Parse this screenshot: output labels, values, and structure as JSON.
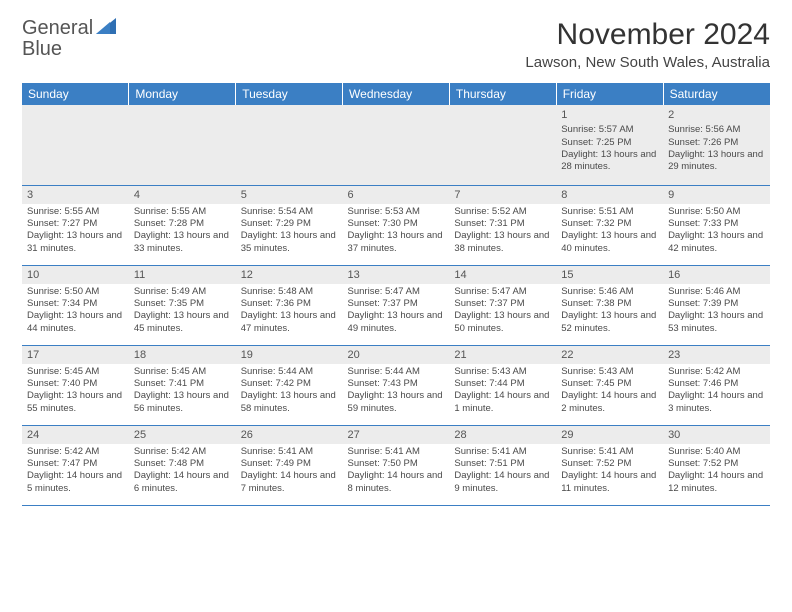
{
  "logo": {
    "text1": "General",
    "text2": "Blue"
  },
  "title": "November 2024",
  "location": "Lawson, New South Wales, Australia",
  "colors": {
    "header_bg": "#3b7fc4",
    "grey_bg": "#ececec",
    "border": "#3b7fc4",
    "text": "#4a4a4a"
  },
  "days_of_week": [
    "Sunday",
    "Monday",
    "Tuesday",
    "Wednesday",
    "Thursday",
    "Friday",
    "Saturday"
  ],
  "weeks": [
    [
      null,
      null,
      null,
      null,
      null,
      {
        "n": "1",
        "sr": "5:57 AM",
        "ss": "7:25 PM",
        "dl": "13 hours and 28 minutes."
      },
      {
        "n": "2",
        "sr": "5:56 AM",
        "ss": "7:26 PM",
        "dl": "13 hours and 29 minutes."
      }
    ],
    [
      {
        "n": "3",
        "sr": "5:55 AM",
        "ss": "7:27 PM",
        "dl": "13 hours and 31 minutes."
      },
      {
        "n": "4",
        "sr": "5:55 AM",
        "ss": "7:28 PM",
        "dl": "13 hours and 33 minutes."
      },
      {
        "n": "5",
        "sr": "5:54 AM",
        "ss": "7:29 PM",
        "dl": "13 hours and 35 minutes."
      },
      {
        "n": "6",
        "sr": "5:53 AM",
        "ss": "7:30 PM",
        "dl": "13 hours and 37 minutes."
      },
      {
        "n": "7",
        "sr": "5:52 AM",
        "ss": "7:31 PM",
        "dl": "13 hours and 38 minutes."
      },
      {
        "n": "8",
        "sr": "5:51 AM",
        "ss": "7:32 PM",
        "dl": "13 hours and 40 minutes."
      },
      {
        "n": "9",
        "sr": "5:50 AM",
        "ss": "7:33 PM",
        "dl": "13 hours and 42 minutes."
      }
    ],
    [
      {
        "n": "10",
        "sr": "5:50 AM",
        "ss": "7:34 PM",
        "dl": "13 hours and 44 minutes."
      },
      {
        "n": "11",
        "sr": "5:49 AM",
        "ss": "7:35 PM",
        "dl": "13 hours and 45 minutes."
      },
      {
        "n": "12",
        "sr": "5:48 AM",
        "ss": "7:36 PM",
        "dl": "13 hours and 47 minutes."
      },
      {
        "n": "13",
        "sr": "5:47 AM",
        "ss": "7:37 PM",
        "dl": "13 hours and 49 minutes."
      },
      {
        "n": "14",
        "sr": "5:47 AM",
        "ss": "7:37 PM",
        "dl": "13 hours and 50 minutes."
      },
      {
        "n": "15",
        "sr": "5:46 AM",
        "ss": "7:38 PM",
        "dl": "13 hours and 52 minutes."
      },
      {
        "n": "16",
        "sr": "5:46 AM",
        "ss": "7:39 PM",
        "dl": "13 hours and 53 minutes."
      }
    ],
    [
      {
        "n": "17",
        "sr": "5:45 AM",
        "ss": "7:40 PM",
        "dl": "13 hours and 55 minutes."
      },
      {
        "n": "18",
        "sr": "5:45 AM",
        "ss": "7:41 PM",
        "dl": "13 hours and 56 minutes."
      },
      {
        "n": "19",
        "sr": "5:44 AM",
        "ss": "7:42 PM",
        "dl": "13 hours and 58 minutes."
      },
      {
        "n": "20",
        "sr": "5:44 AM",
        "ss": "7:43 PM",
        "dl": "13 hours and 59 minutes."
      },
      {
        "n": "21",
        "sr": "5:43 AM",
        "ss": "7:44 PM",
        "dl": "14 hours and 1 minute."
      },
      {
        "n": "22",
        "sr": "5:43 AM",
        "ss": "7:45 PM",
        "dl": "14 hours and 2 minutes."
      },
      {
        "n": "23",
        "sr": "5:42 AM",
        "ss": "7:46 PM",
        "dl": "14 hours and 3 minutes."
      }
    ],
    [
      {
        "n": "24",
        "sr": "5:42 AM",
        "ss": "7:47 PM",
        "dl": "14 hours and 5 minutes."
      },
      {
        "n": "25",
        "sr": "5:42 AM",
        "ss": "7:48 PM",
        "dl": "14 hours and 6 minutes."
      },
      {
        "n": "26",
        "sr": "5:41 AM",
        "ss": "7:49 PM",
        "dl": "14 hours and 7 minutes."
      },
      {
        "n": "27",
        "sr": "5:41 AM",
        "ss": "7:50 PM",
        "dl": "14 hours and 8 minutes."
      },
      {
        "n": "28",
        "sr": "5:41 AM",
        "ss": "7:51 PM",
        "dl": "14 hours and 9 minutes."
      },
      {
        "n": "29",
        "sr": "5:41 AM",
        "ss": "7:52 PM",
        "dl": "14 hours and 11 minutes."
      },
      {
        "n": "30",
        "sr": "5:40 AM",
        "ss": "7:52 PM",
        "dl": "14 hours and 12 minutes."
      }
    ]
  ],
  "labels": {
    "sunrise": "Sunrise:",
    "sunset": "Sunset:",
    "daylight": "Daylight:"
  }
}
